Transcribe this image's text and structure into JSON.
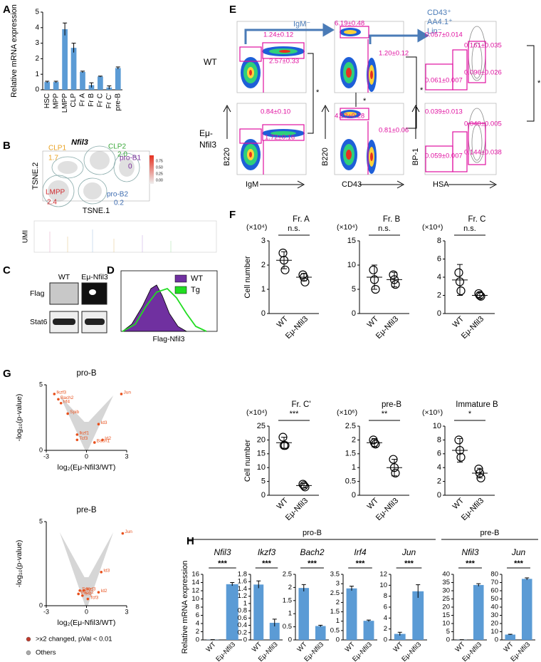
{
  "panel_labels": [
    "A",
    "B",
    "C",
    "D",
    "E",
    "F",
    "G",
    "H"
  ],
  "chart_data": [
    {
      "type": "bar",
      "ylabel": "Relative mRNA expression",
      "categories": [
        "HSC",
        "MPP",
        "LMPP",
        "CLP",
        "Fr A",
        "Fr B",
        "Fr C",
        "Fr C'",
        "pre-B"
      ],
      "values": [
        0.5,
        0.5,
        3.9,
        2.7,
        1.15,
        0.3,
        0.85,
        0.15,
        1.4
      ],
      "errors": [
        0.05,
        0.05,
        0.4,
        0.3,
        0.05,
        0.15,
        0.03,
        0.1,
        0.07
      ],
      "color": "#5b9bd5",
      "ylim": [
        0,
        5
      ],
      "yticks": [
        0,
        1,
        2,
        3,
        4,
        5
      ]
    },
    {
      "type": "dot",
      "title": "Fr. A",
      "multiplier": "(×10⁴)",
      "ylabel": "Cell number",
      "significance": "n.s.",
      "categories": [
        "WT",
        "Eμ-Nfil3"
      ],
      "points": [
        [
          2.5,
          2.2,
          1.8
        ],
        [
          1.6,
          1.5,
          1.3
        ]
      ],
      "means": [
        2.2,
        1.5
      ],
      "sd": [
        0.35,
        0.15
      ],
      "ylim": [
        0,
        3
      ],
      "yticks": [
        0,
        1,
        2,
        3
      ]
    },
    {
      "type": "dot",
      "title": "Fr. B",
      "multiplier": "(×10⁴)",
      "significance": "n.s.",
      "categories": [
        "WT",
        "Eμ-Nfil3"
      ],
      "points": [
        [
          9,
          7,
          5
        ],
        [
          8,
          7,
          6
        ]
      ],
      "means": [
        7.5,
        7
      ],
      "sd": [
        2.5,
        1.5
      ],
      "ylim": [
        0,
        15
      ],
      "yticks": [
        0,
        5,
        10,
        15
      ]
    },
    {
      "type": "dot",
      "title": "Fr. C",
      "multiplier": "(×10⁴)",
      "significance": "n.s.",
      "categories": [
        "WT",
        "Eμ-Nfil3"
      ],
      "points": [
        [
          4.5,
          3.5,
          2.5
        ],
        [
          2.2,
          2.0,
          1.9
        ]
      ],
      "means": [
        3.7,
        2
      ],
      "sd": [
        1.7,
        0.3
      ],
      "ylim": [
        0,
        8
      ],
      "yticks": [
        0,
        2,
        4,
        6,
        8
      ]
    },
    {
      "type": "dot",
      "title": "Fr. C'",
      "multiplier": "(×10⁴)",
      "ylabel": "Cell number",
      "significance": "***",
      "categories": [
        "WT",
        "Eμ-Nfil3"
      ],
      "points": [
        [
          21,
          18,
          18
        ],
        [
          4,
          3.5,
          3
        ]
      ],
      "means": [
        19,
        3.5
      ],
      "sd": [
        2,
        0.8
      ],
      "ylim": [
        0,
        25
      ],
      "yticks": [
        0,
        5,
        10,
        15,
        20,
        25
      ]
    },
    {
      "type": "dot",
      "title": "pre-B",
      "multiplier": "(×10⁶)",
      "significance": "**",
      "categories": [
        "WT",
        "Eμ-Nfil3"
      ],
      "points": [
        [
          2.0,
          1.9,
          1.85
        ],
        [
          1.3,
          1.0,
          0.8
        ]
      ],
      "means": [
        1.9,
        1.0
      ],
      "sd": [
        0.15,
        0.3
      ],
      "ylim": [
        0,
        2.5
      ],
      "yticks": [
        0,
        0.5,
        1,
        1.5,
        2,
        2.5
      ]
    },
    {
      "type": "dot",
      "title": "Immature B",
      "multiplier": "(×10⁵)",
      "significance": "*",
      "categories": [
        "WT",
        "Eμ-Nfil3"
      ],
      "points": [
        [
          8,
          6.5,
          5.5
        ],
        [
          3.8,
          3.2,
          2.5
        ]
      ],
      "means": [
        6.5,
        3.2
      ],
      "sd": [
        1.7,
        0.7
      ],
      "ylim": [
        0,
        10
      ],
      "yticks": [
        0,
        2,
        4,
        6,
        8,
        10
      ]
    },
    {
      "type": "volcano",
      "title": "pro-B",
      "xlabel": "log₂(Eμ-Nfil3/WT)",
      "ylabel": "-log₁₀(p-value)",
      "color": "#e8501c",
      "labels": [
        "Ikzf3",
        "Bach2",
        "Irf4",
        "Spib",
        "Jun",
        "Id3",
        "Ikzf1",
        "Tcf3",
        "Id2",
        "Bach1"
      ],
      "x": [
        -2.4,
        -2.1,
        -1.9,
        -1.4,
        2.6,
        0.9,
        -0.7,
        -0.7,
        1.2,
        0.6
      ],
      "values": [
        4.3,
        3.9,
        3.6,
        2.8,
        4.3,
        2.0,
        1.2,
        0.8,
        0.8,
        0.6
      ],
      "xlim": [
        -3,
        3
      ],
      "xticks": [
        -3,
        0,
        3
      ],
      "ylim": [
        0,
        5
      ],
      "yticks": [
        0,
        5
      ]
    },
    {
      "type": "volcano",
      "title": "pre-B",
      "xlabel": "log₂(Eμ-Nfil3/WT)",
      "ylabel": "-log₁₀(p-value)",
      "color": "#e8501c",
      "labels": [
        "Jun",
        "Id3",
        "Spib",
        "Ikzf3",
        "Bach2",
        "Irf4",
        "Id2",
        "Tcf3"
      ],
      "x": [
        2.7,
        1.1,
        -0.5,
        -0.2,
        -0.6,
        -0.3,
        0.9,
        0.1
      ],
      "values": [
        4.3,
        2.0,
        0.9,
        0.9,
        0.7,
        0.6,
        0.8,
        0.4
      ],
      "xlim": [
        -3,
        3
      ],
      "xticks": [
        -3,
        0,
        3
      ],
      "ylim": [
        0,
        5
      ],
      "yticks": [
        0,
        5
      ]
    },
    {
      "type": "bar",
      "title": "Nfil3",
      "ylabel": "Relative mRNA expression",
      "significance": "***",
      "categories": [
        "WT",
        "Eμ-Nfil3"
      ],
      "values": [
        0.05,
        13.6
      ],
      "errors": [
        0.02,
        0.4
      ],
      "color": "#5b9bd5",
      "ylim": [
        0,
        16
      ],
      "yticks": [
        0,
        2,
        4,
        6,
        8,
        10,
        12,
        14,
        16
      ]
    },
    {
      "type": "bar",
      "title": "Ikzf3",
      "significance": "***",
      "categories": [
        "WT",
        "Eμ-Nfil3"
      ],
      "values": [
        1.52,
        0.47
      ],
      "errors": [
        0.1,
        0.1
      ],
      "color": "#5b9bd5",
      "ylim": [
        0,
        1.8
      ],
      "yticks": [
        0,
        0.2,
        0.4,
        0.6,
        0.8,
        1,
        1.2,
        1.4,
        1.6,
        1.8
      ]
    },
    {
      "type": "bar",
      "title": "Bach2",
      "significance": "***",
      "categories": [
        "WT",
        "Eμ-Nfil3"
      ],
      "values": [
        1.98,
        0.53
      ],
      "errors": [
        0.13,
        0.03
      ],
      "color": "#5b9bd5",
      "ylim": [
        0,
        2.5
      ],
      "yticks": [
        0,
        0.5,
        1,
        1.5,
        2,
        2.5
      ]
    },
    {
      "type": "bar",
      "title": "Irf4",
      "significance": "***",
      "categories": [
        "WT",
        "Eμ-Nfil3"
      ],
      "values": [
        2.75,
        1.02
      ],
      "errors": [
        0.12,
        0.04
      ],
      "color": "#5b9bd5",
      "ylim": [
        0,
        3.5
      ],
      "yticks": [
        0,
        0.5,
        1,
        1.5,
        2,
        2.5,
        3,
        3.5
      ]
    },
    {
      "type": "bar",
      "title": "Jun",
      "significance": "***",
      "categories": [
        "WT",
        "Eμ-Nfil3"
      ],
      "values": [
        1.1,
        8.9
      ],
      "errors": [
        0.3,
        1.2
      ],
      "color": "#5b9bd5",
      "ylim": [
        0,
        12
      ],
      "yticks": [
        0,
        2,
        4,
        6,
        8,
        10,
        12
      ]
    },
    {
      "type": "bar",
      "title": "Nfil3",
      "significance": "***",
      "categories": [
        "WT",
        "Eμ-Nfil3"
      ],
      "values": [
        0.1,
        33.5
      ],
      "errors": [
        0.05,
        0.8
      ],
      "color": "#5b9bd5",
      "ylim": [
        0,
        40
      ],
      "yticks": [
        0,
        5,
        10,
        15,
        20,
        25,
        30,
        35,
        40
      ]
    },
    {
      "type": "bar",
      "title": "Jun",
      "significance": "***",
      "categories": [
        "WT",
        "Eμ-Nfil3"
      ],
      "values": [
        6.5,
        74.5
      ],
      "errors": [
        0.4,
        1.2
      ],
      "color": "#5b9bd5",
      "ylim": [
        0,
        80
      ],
      "yticks": [
        0,
        10,
        20,
        30,
        40,
        50,
        60,
        70,
        80
      ]
    }
  ],
  "expression_groups": [
    "pro-B",
    "pre-B"
  ],
  "volcano_legend": [
    {
      "name": ">x2 changed, pVal < 0.01",
      "color": "#c0392b"
    },
    {
      "name": "Others",
      "color": "#aaaaaa"
    }
  ],
  "tsne": {
    "gene": "Nfil3",
    "axes": [
      "TSNE.2",
      "TSNE.1"
    ],
    "umi_label": "UMI",
    "clusters": [
      {
        "name": "CLP1",
        "value": "1.7",
        "color": "#e8a020"
      },
      {
        "name": "CLP2",
        "value": "2.0",
        "color": "#3aa83a"
      },
      {
        "name": "pro-B1",
        "value": "0",
        "color": "#7a2a9a"
      },
      {
        "name": "LMPP",
        "value": "2.4",
        "color": "#d0282c"
      },
      {
        "name": "pro-B2",
        "value": "0.2",
        "color": "#3a6ab0"
      }
    ],
    "colorbar_ticks": [
      "0.75",
      "0.50",
      "0.25",
      "0.00"
    ]
  },
  "western": {
    "columns": [
      "WT",
      "Eμ-Nfil3"
    ],
    "rows": [
      "Flag",
      "Stat6"
    ]
  },
  "flag_histogram": {
    "xlabel": "Flag-Nfil3",
    "legend": [
      {
        "name": "WT",
        "color": "#7030a0"
      },
      {
        "name": "Tg",
        "color": "#22dd22"
      }
    ]
  },
  "flow": {
    "row_labels": [
      "WT",
      "Eμ-",
      "Nfil3"
    ],
    "gates": [
      "IgM⁻",
      "CD43⁺",
      "AA4.1⁺",
      "Lin⁻"
    ],
    "axis_labels": [
      "B220",
      "IgM",
      "B220",
      "CD43",
      "BP-1",
      "HSA"
    ],
    "frequencies": [
      "1.24±0.12",
      "2.57±0.33",
      "6.19±0.48",
      "1.20±0.12",
      "0.057±0.014",
      "0.161±0.035",
      "0.061±0.007",
      "0.096±0.026",
      "0.84±0.10",
      "1.72±0.16",
      "4.12±0.28",
      "0.81±0.06",
      "0.039±0.013",
      "0.040±0.005",
      "0.059±0.007",
      "0.144±0.038"
    ],
    "significance": [
      "*",
      "*",
      "*",
      "*"
    ]
  }
}
